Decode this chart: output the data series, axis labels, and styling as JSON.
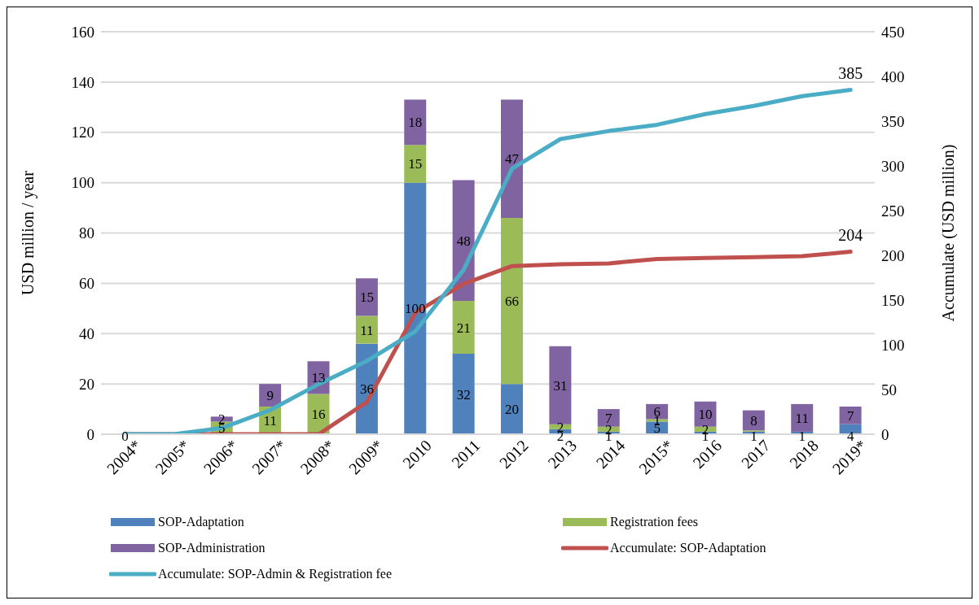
{
  "chart_data": {
    "type": "bar",
    "stacked": true,
    "ylabel": "USD million / year",
    "y2label": "Accumulate (USD million)",
    "categories": [
      "2004*",
      "2005*",
      "2006*",
      "2007*",
      "2008*",
      "2009*",
      "2010",
      "2011",
      "2012",
      "2013",
      "2014",
      "2015*",
      "2016",
      "2017",
      "2018",
      "2019*"
    ],
    "series": [
      {
        "name": "SOP-Adaptation",
        "color": "#4f81bd",
        "values": [
          0,
          0,
          0,
          0,
          0,
          36,
          100,
          32,
          20,
          2,
          1,
          5,
          1,
          1,
          1,
          4
        ],
        "value_labels": [
          "0",
          null,
          null,
          null,
          null,
          "36",
          "100",
          "32",
          "20",
          "2",
          "1",
          "5",
          "1",
          "1",
          "1",
          "4"
        ]
      },
      {
        "name": "Registration fees",
        "color": "#9bbb59",
        "values": [
          0,
          0,
          5,
          11,
          16,
          11,
          15,
          21,
          66,
          2,
          2,
          1,
          2,
          0.5,
          0,
          0
        ],
        "value_labels": [
          null,
          null,
          "5",
          "11",
          "16",
          "11",
          "15",
          "21",
          "66",
          "2",
          "2",
          "1",
          "2",
          null,
          null,
          null
        ]
      },
      {
        "name": "SOP-Administration",
        "color": "#8064a2",
        "values": [
          0,
          0,
          2,
          9,
          13,
          15,
          18,
          48,
          47,
          31,
          7,
          6,
          10,
          8,
          11,
          7
        ],
        "value_labels": [
          null,
          null,
          "2",
          "9",
          "13",
          "15",
          "18",
          "48",
          "47",
          "31",
          "7",
          "6",
          "10",
          "8",
          "11",
          "7"
        ]
      },
      {
        "name": "Accumulate: SOP-Adaptation",
        "type": "line",
        "axis": "y2",
        "color": "#c0504d",
        "values": [
          0,
          0,
          0,
          0,
          0,
          36,
          136,
          168,
          188,
          190,
          191,
          196,
          197,
          198,
          199,
          204
        ],
        "value_labels": [
          null,
          null,
          null,
          null,
          null,
          null,
          null,
          null,
          null,
          null,
          null,
          null,
          null,
          null,
          null,
          "204"
        ]
      },
      {
        "name": "Accumulate: SOP-Admin & Registration fee",
        "type": "line",
        "axis": "y2",
        "color": "#4bacc6",
        "values": [
          0,
          0,
          7,
          27,
          56,
          82,
          115,
          184,
          297,
          330,
          339,
          346,
          358,
          367,
          378,
          385
        ],
        "value_labels": [
          null,
          null,
          null,
          null,
          null,
          null,
          null,
          null,
          null,
          null,
          null,
          null,
          null,
          null,
          null,
          "385"
        ]
      }
    ],
    "ylim": [
      0,
      160
    ],
    "yticks": [
      0,
      20,
      40,
      60,
      80,
      100,
      120,
      140,
      160
    ],
    "y2lim": [
      0,
      450
    ],
    "y2ticks": [
      0,
      50,
      100,
      150,
      200,
      250,
      300,
      350,
      400,
      450
    ],
    "grid": "y",
    "legend": "bottom",
    "marker": "none",
    "line_style": "solid"
  }
}
